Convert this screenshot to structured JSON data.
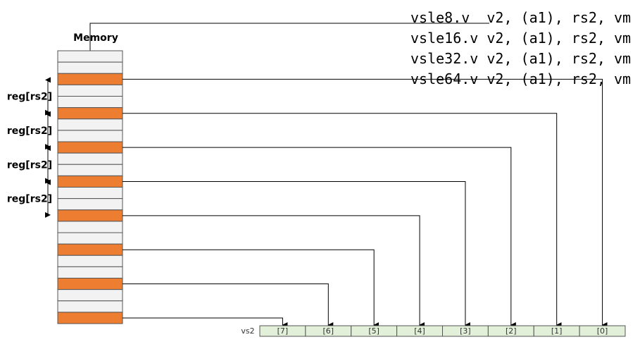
{
  "memory_label": "Memory",
  "instructions": [
    "vsle8.v  v2, (a1), rs2, vm",
    "vsle16.v v2, (a1), rs2, vm",
    "vsle32.v v2, (a1), rs2, vm",
    "vsle64.v v2, (a1), rs2, vm"
  ],
  "stride_labels": [
    "reg[rs2]",
    "reg[rs2]",
    "reg[rs2]",
    "reg[rs2]"
  ],
  "register": {
    "name": "vs2",
    "elements": [
      "[7]",
      "[6]",
      "[5]",
      "[4]",
      "[3]",
      "[2]",
      "[1]",
      "[0]"
    ]
  }
}
